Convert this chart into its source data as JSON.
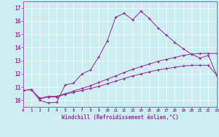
{
  "xlabel": "Windchill (Refroidissement éolien,°C)",
  "bg_color": "#cceef0",
  "line_color": "#993399",
  "xlim": [
    0,
    23
  ],
  "ylim": [
    9.5,
    17.5
  ],
  "xtick_labels": [
    "0",
    "1",
    "2",
    "3",
    "4",
    "5",
    "6",
    "7",
    "8",
    "9",
    "10",
    "11",
    "12",
    "13",
    "14",
    "15",
    "16",
    "17",
    "18",
    "19",
    "20",
    "21",
    "22",
    "23"
  ],
  "ytick_labels": [
    "10",
    "11",
    "12",
    "13",
    "14",
    "15",
    "16",
    "17"
  ],
  "ytick_vals": [
    10,
    11,
    12,
    13,
    14,
    15,
    16,
    17
  ],
  "series1_x": [
    0,
    1,
    2,
    3,
    4,
    5,
    6,
    7,
    8,
    9,
    10,
    11,
    12,
    13,
    14,
    15,
    16,
    17,
    18,
    19,
    20,
    21,
    22,
    23
  ],
  "series1_y": [
    10.75,
    10.8,
    10.0,
    9.8,
    9.85,
    11.15,
    11.3,
    12.0,
    12.3,
    13.3,
    14.5,
    16.3,
    16.6,
    16.1,
    16.75,
    16.2,
    15.5,
    14.95,
    14.4,
    13.9,
    13.5,
    13.2,
    13.4,
    11.9
  ],
  "series2_x": [
    0,
    1,
    2,
    3,
    4,
    5,
    6,
    7,
    8,
    9,
    10,
    11,
    12,
    13,
    14,
    15,
    16,
    17,
    18,
    19,
    20,
    21,
    22,
    23
  ],
  "series2_y": [
    10.75,
    10.8,
    10.15,
    10.3,
    10.3,
    10.5,
    10.7,
    10.9,
    11.1,
    11.35,
    11.6,
    11.85,
    12.1,
    12.35,
    12.55,
    12.75,
    12.95,
    13.1,
    13.25,
    13.4,
    13.5,
    13.55,
    13.55,
    13.55
  ],
  "series3_x": [
    0,
    1,
    2,
    3,
    4,
    5,
    6,
    7,
    8,
    9,
    10,
    11,
    12,
    13,
    14,
    15,
    16,
    17,
    18,
    19,
    20,
    21,
    22,
    23
  ],
  "series3_y": [
    10.75,
    10.8,
    10.1,
    10.25,
    10.25,
    10.45,
    10.6,
    10.75,
    10.9,
    11.05,
    11.25,
    11.45,
    11.65,
    11.85,
    12.0,
    12.15,
    12.3,
    12.4,
    12.5,
    12.6,
    12.65,
    12.65,
    12.65,
    11.9
  ]
}
